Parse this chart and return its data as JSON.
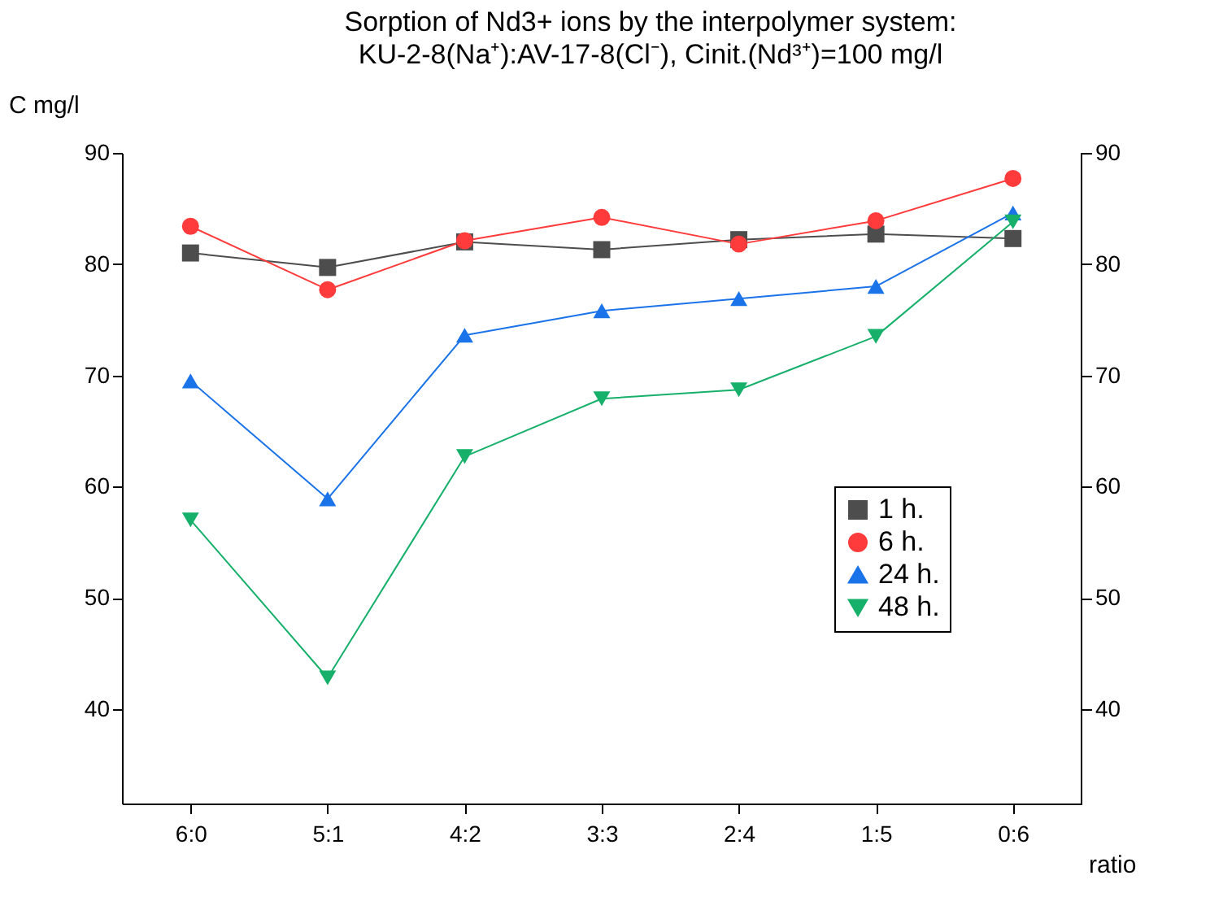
{
  "chart_data": {
    "type": "line",
    "title": "Sorption of Nd3+ ions by the interpolymer system:",
    "subtitle": "KU-2-8(Na⁺):AV-17-8(Cl⁻), Cinit.(Nd³⁺)=100 mg/l",
    "xlabel": "ratio",
    "ylabel": "C mg/l",
    "categories": [
      "6:0",
      "5:1",
      "4:2",
      "3:3",
      "2:4",
      "1:5",
      "0:6"
    ],
    "series": [
      {
        "name": "1 h.",
        "color": "#4d4d4d",
        "marker": "square",
        "values": [
          81.0,
          79.7,
          82.0,
          81.3,
          82.2,
          82.7,
          82.3
        ]
      },
      {
        "name": "6 h.",
        "color": "#ff3b3b",
        "marker": "circle",
        "values": [
          83.4,
          77.7,
          82.1,
          84.2,
          81.8,
          83.9,
          87.7
        ]
      },
      {
        "name": "24 h.",
        "color": "#1a73e8",
        "marker": "triangle",
        "values": [
          69.5,
          58.9,
          73.6,
          75.8,
          76.9,
          78.0,
          84.6
        ]
      },
      {
        "name": "48 h.",
        "color": "#16b06a",
        "marker": "triangle-down",
        "values": [
          57.0,
          42.8,
          62.7,
          67.9,
          68.7,
          73.5,
          83.8
        ]
      }
    ],
    "ylim": [
      31.5,
      90
    ],
    "yticks": [
      40,
      50,
      60,
      70,
      80,
      90
    ],
    "y2lim": [
      31.5,
      90
    ],
    "y2ticks": [
      40,
      50,
      60,
      70,
      80,
      90
    ],
    "grid": false,
    "legend": "right",
    "line_style": "solid"
  }
}
